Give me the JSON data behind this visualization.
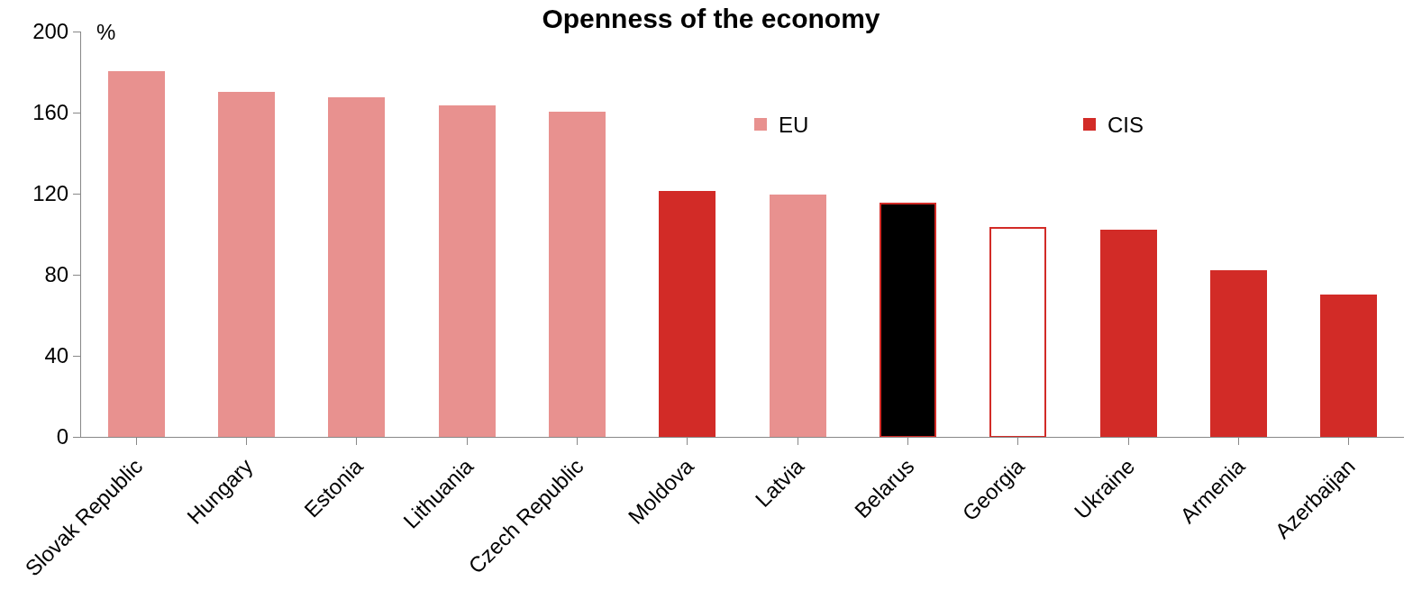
{
  "chart_data": {
    "type": "bar",
    "title": "Openness of the economy",
    "ylabel": "%",
    "categories": [
      "Slovak Republic",
      "Hungary",
      "Estonia",
      "Lithuania",
      "Czech Republic",
      "Moldova",
      "Latvia",
      "Belarus",
      "Georgia",
      "Ukraine",
      "Armenia",
      "Azerbaijan"
    ],
    "series": [
      {
        "name": "EU",
        "color": "#e8918f",
        "values": [
          180,
          170,
          167,
          163,
          160,
          null,
          119,
          null,
          null,
          null,
          null,
          null
        ]
      },
      {
        "name": "CIS",
        "color": "#d22b27",
        "colors": [
          "#d22b27",
          "#d22b27",
          "#d22b27",
          "#d22b27",
          "#d22b27",
          "#d22b27",
          "#d22b27",
          "#000000",
          "#ffffff",
          "#d22b27",
          "#d22b27",
          "#d22b27"
        ],
        "values": [
          null,
          null,
          null,
          null,
          null,
          121,
          null,
          115,
          103,
          102,
          82,
          70
        ]
      }
    ],
    "stacked": true,
    "ylim": [
      0,
      200
    ],
    "yticks": [
      0,
      40,
      80,
      120,
      160,
      200
    ],
    "legend": "top"
  }
}
